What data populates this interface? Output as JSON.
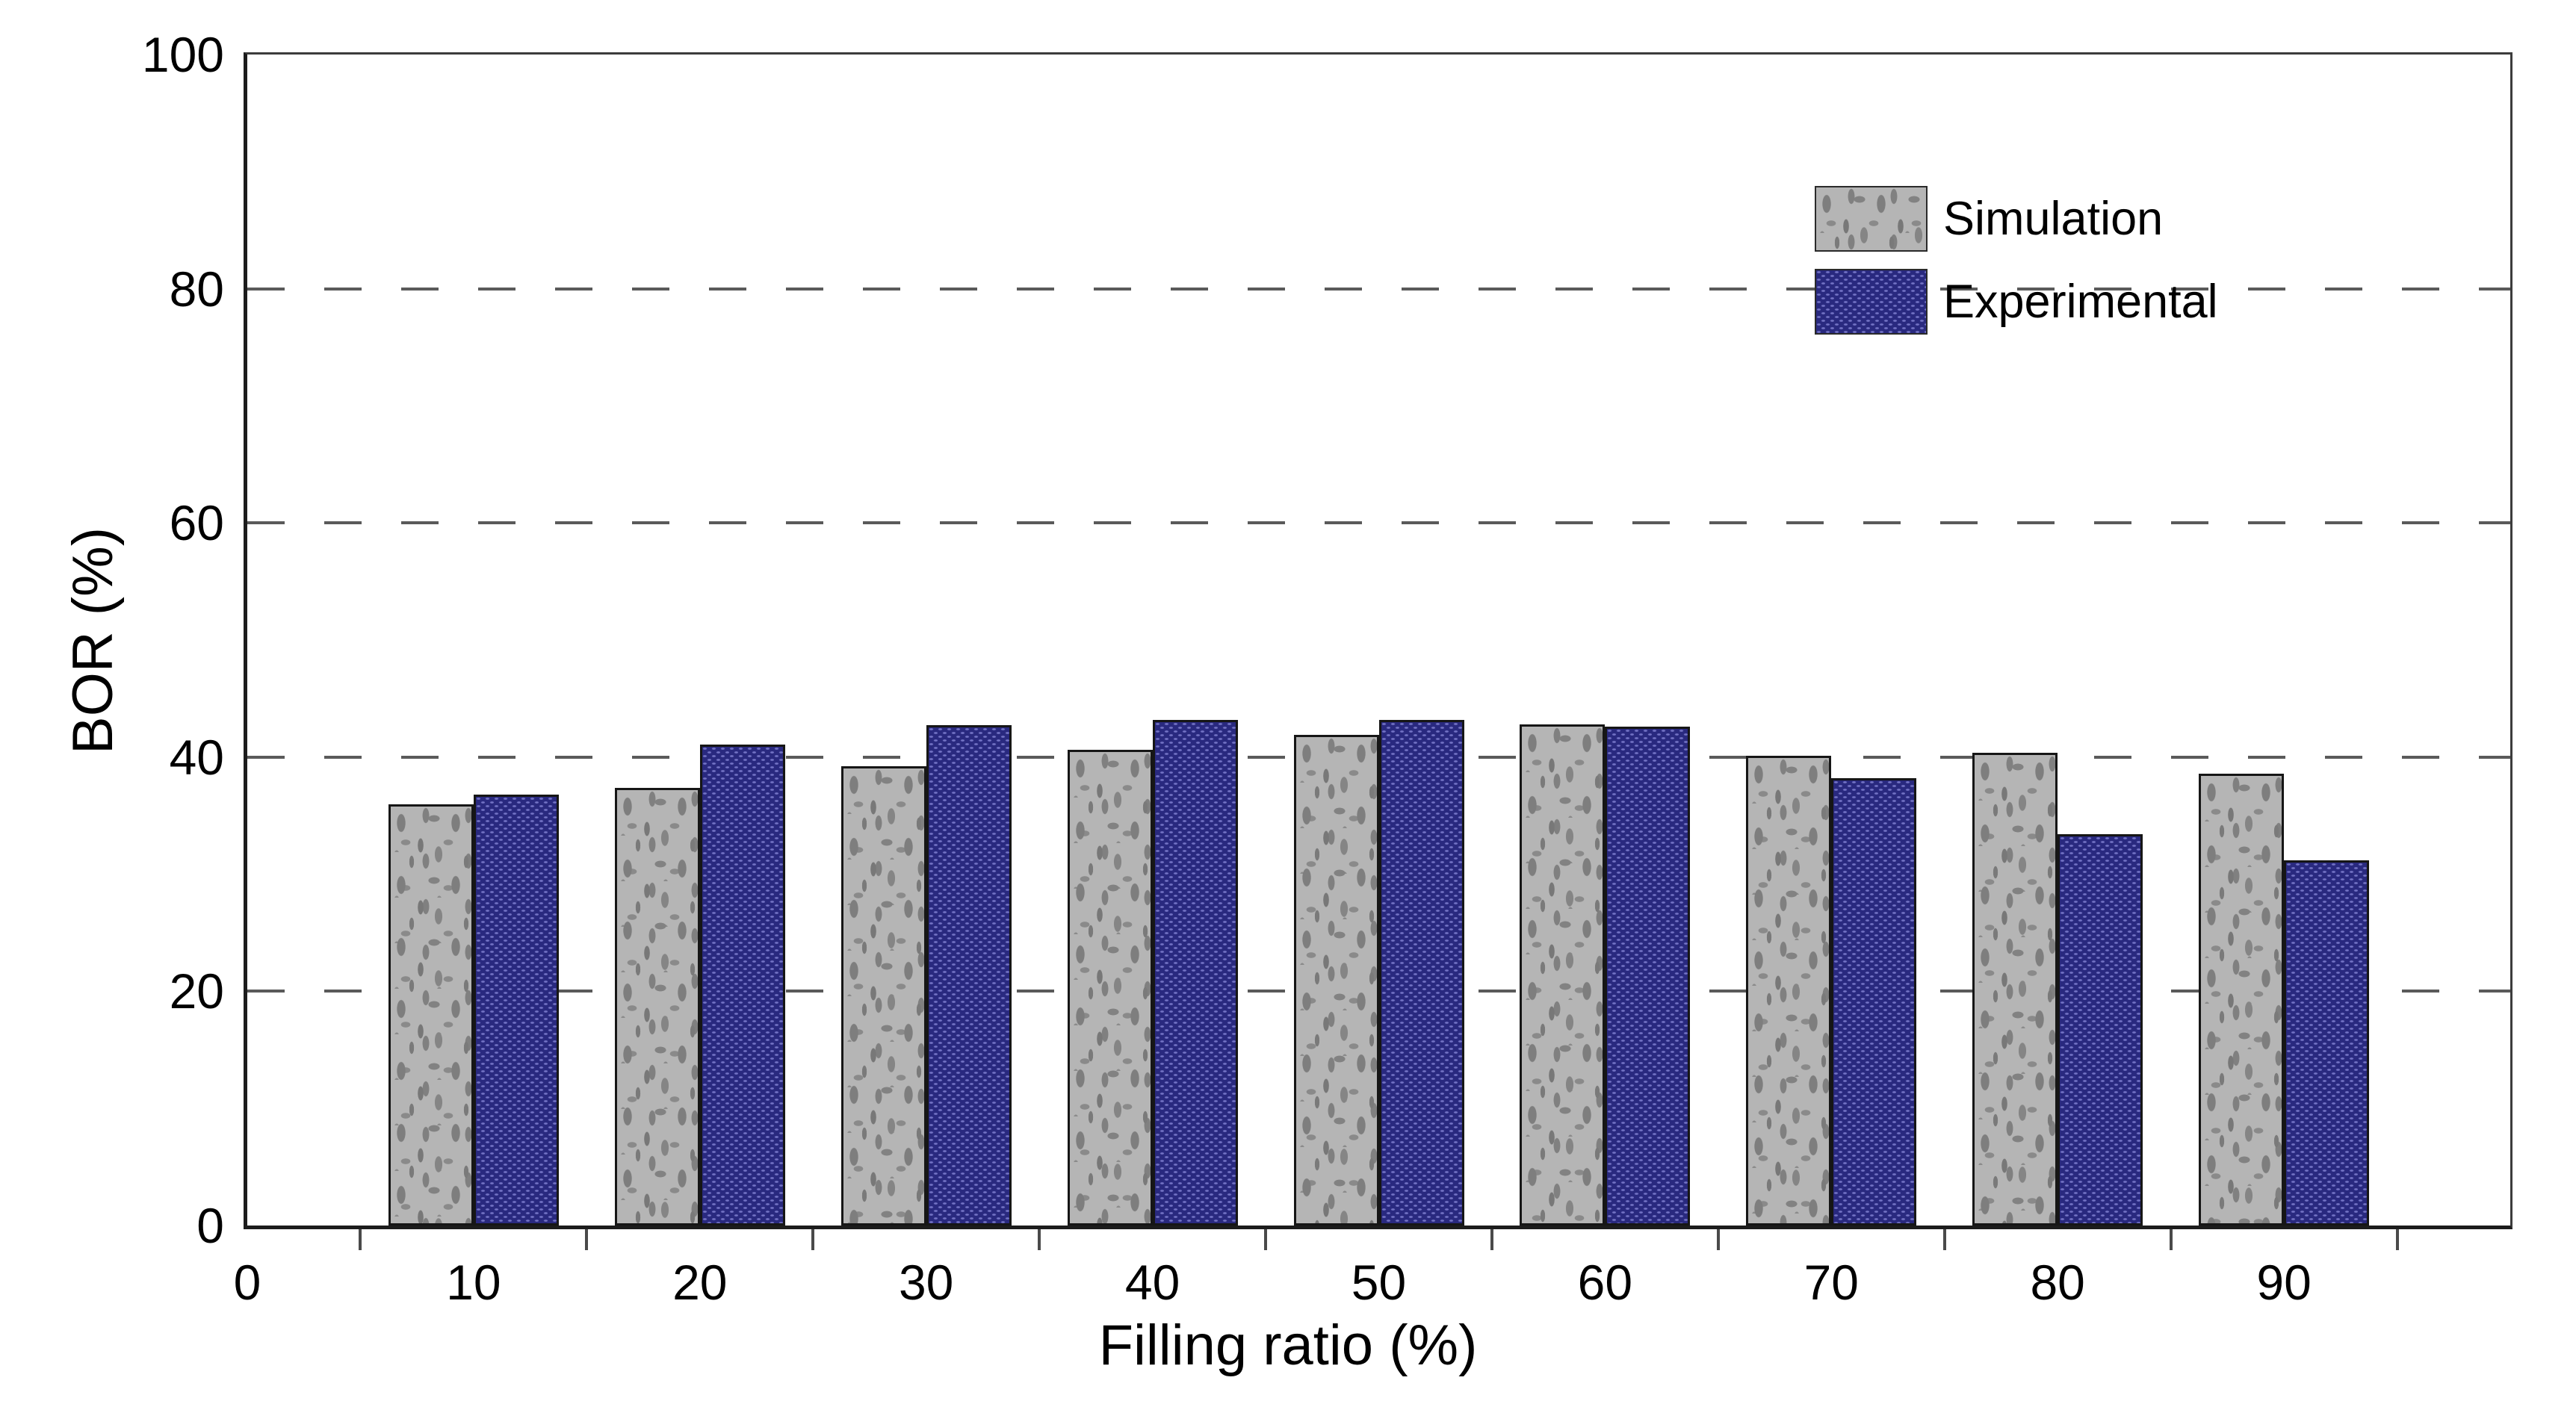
{
  "figure": {
    "background": "#ffffff"
  },
  "chart_data": {
    "type": "bar",
    "title": "",
    "xlabel": "Filling ratio (%)",
    "ylabel": "BOR (%)",
    "categories": [
      10,
      20,
      30,
      40,
      50,
      60,
      70,
      80,
      90
    ],
    "series": [
      {
        "name": "Simulation",
        "style": "gray-mottled-texture",
        "values": [
          36.0,
          37.4,
          39.2,
          40.6,
          41.9,
          42.8,
          40.1,
          40.4,
          38.6
        ]
      },
      {
        "name": "Experimental",
        "style": "navy-dotted-texture",
        "values": [
          36.8,
          41.1,
          42.7,
          43.2,
          43.2,
          42.6,
          38.2,
          33.4,
          31.2
        ]
      }
    ],
    "xlim": [
      0,
      100
    ],
    "ylim": [
      0,
      100
    ],
    "x_tick_labels": [
      0,
      10,
      20,
      30,
      40,
      50,
      60,
      70,
      80,
      90
    ],
    "x_boundary_ticks": [
      5,
      15,
      25,
      35,
      45,
      55,
      65,
      75,
      85,
      95
    ],
    "y_ticks": [
      0,
      20,
      40,
      60,
      80,
      100
    ],
    "gridlines_at": [
      20,
      40,
      60,
      80
    ],
    "grid_style": "long-dashed",
    "grid_on": true,
    "legend_position": "upper right",
    "colors": {
      "simulation_fill": "#b5b5b5",
      "simulation_speckle": "#7e7e7e",
      "experimental_fill": "#29297f",
      "experimental_dot": "#7272c4",
      "axis": "#1c1c1c",
      "grid": "#5a5a5a"
    }
  },
  "legend": {
    "items": [
      {
        "label": "Simulation"
      },
      {
        "label": "Experimental"
      }
    ]
  }
}
